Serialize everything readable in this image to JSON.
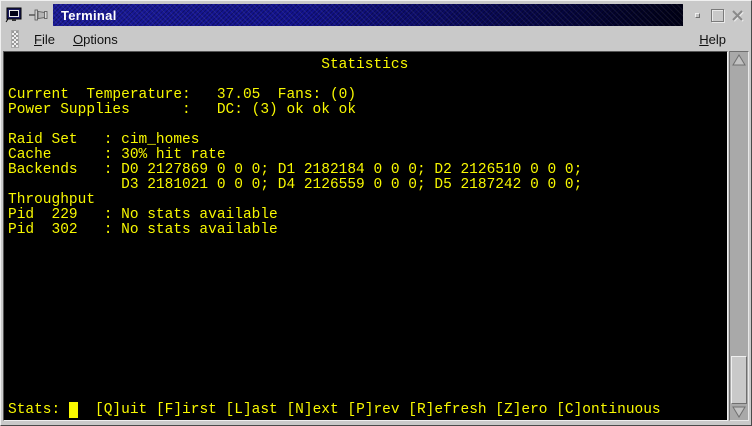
{
  "window": {
    "title": "Terminal"
  },
  "titlebar": {
    "icons": {
      "app": "terminal-monitor-icon",
      "pin": "push-pin-icon"
    },
    "buttons": {
      "minimize": "minimize",
      "maximize": "maximize",
      "close": "close"
    }
  },
  "menubar": {
    "items": [
      {
        "label": "File"
      },
      {
        "label": "Options"
      }
    ],
    "right_items": [
      {
        "label": "Help"
      }
    ]
  },
  "terminal": {
    "colors": {
      "background": "#000000",
      "foreground": "#f8f800",
      "titlebar_blue": "#12128c",
      "chrome_gray": "#c9c9c9"
    },
    "title_line": "Statistics",
    "lines": [
      "                                    Statistics",
      "",
      "Current  Temperature:   37.05  Fans: (0)",
      "Power Supplies      :   DC: (3) ok ok ok",
      "",
      "Raid Set   : cim_homes",
      "Cache      : 30% hit rate",
      "Backends   : D0 2127869 0 0 0; D1 2182184 0 0 0; D2 2126510 0 0 0;",
      "             D3 2181021 0 0 0; D4 2126559 0 0 0; D5 2187242 0 0 0;",
      "Throughput",
      "Pid  229   : No stats available",
      "Pid  302   : No stats available",
      "",
      "",
      "",
      "",
      "",
      "",
      "",
      "",
      "",
      "",
      ""
    ],
    "status": {
      "prompt": "Stats: ",
      "cursor": " ",
      "keys": "  [Q]uit [F]irst [L]ast [N]ext [P]rev [R]efresh [Z]ero [C]ontinuous"
    }
  }
}
